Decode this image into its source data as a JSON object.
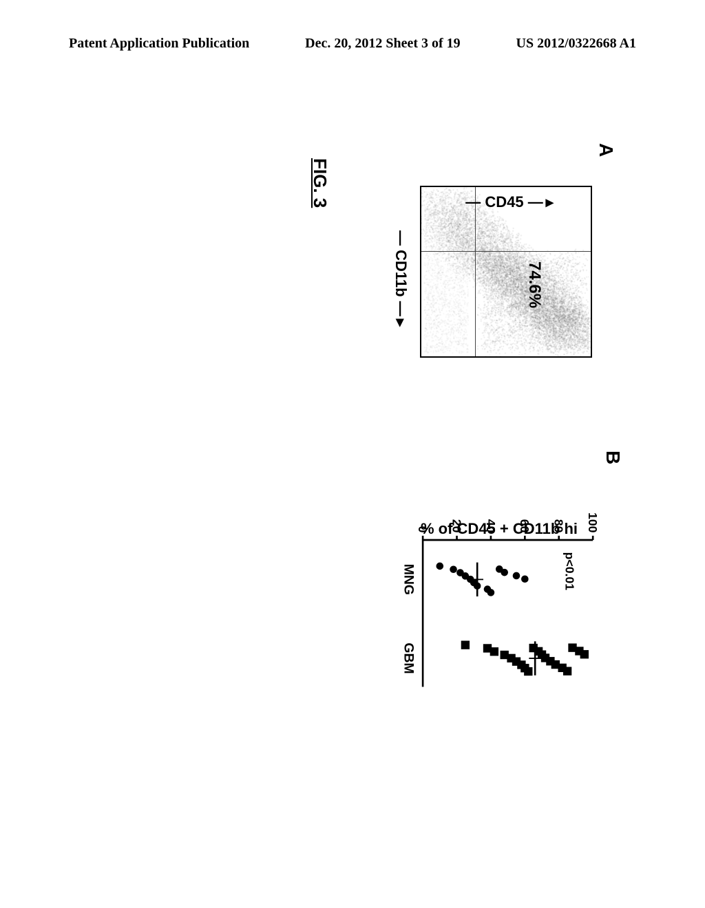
{
  "header": {
    "left": "Patent Application Publication",
    "center": "Dec. 20, 2012  Sheet 3 of 19",
    "right": "US 2012/0322668 A1"
  },
  "figure_caption": "FIG. 3",
  "panelA": {
    "label": "A",
    "y_axis": "— CD45 —",
    "x_axis": "— CD11b —",
    "percentage": "74.6%",
    "quadrant_v_pct": 38,
    "quadrant_h_pct": 68,
    "point_color": "#5a5a5a",
    "box_border": "#000000"
  },
  "panelB": {
    "label": "B",
    "y_axis": "% of CD45 + CD11b hi",
    "p_value": "p<0.01",
    "ylim": [
      0,
      100
    ],
    "ytick_step": 20,
    "yticks": [
      0,
      20,
      40,
      60,
      80,
      100
    ],
    "categories": [
      "MNG",
      "GBM"
    ],
    "series": {
      "MNG": {
        "marker": "circle",
        "color": "#000000",
        "size": 6,
        "values": [
          10,
          18,
          22,
          25,
          28,
          30,
          32,
          38,
          40,
          45,
          48,
          55,
          60
        ],
        "median": 32
      },
      "GBM": {
        "marker": "square",
        "color": "#000000",
        "size": 7,
        "values": [
          25,
          38,
          42,
          48,
          52,
          55,
          58,
          60,
          62,
          65,
          68,
          70,
          72,
          75,
          78,
          82,
          85,
          88,
          92,
          95
        ],
        "median": 66
      }
    },
    "axis_color": "#000000",
    "tick_fontsize": 20,
    "label_fontsize": 22
  }
}
